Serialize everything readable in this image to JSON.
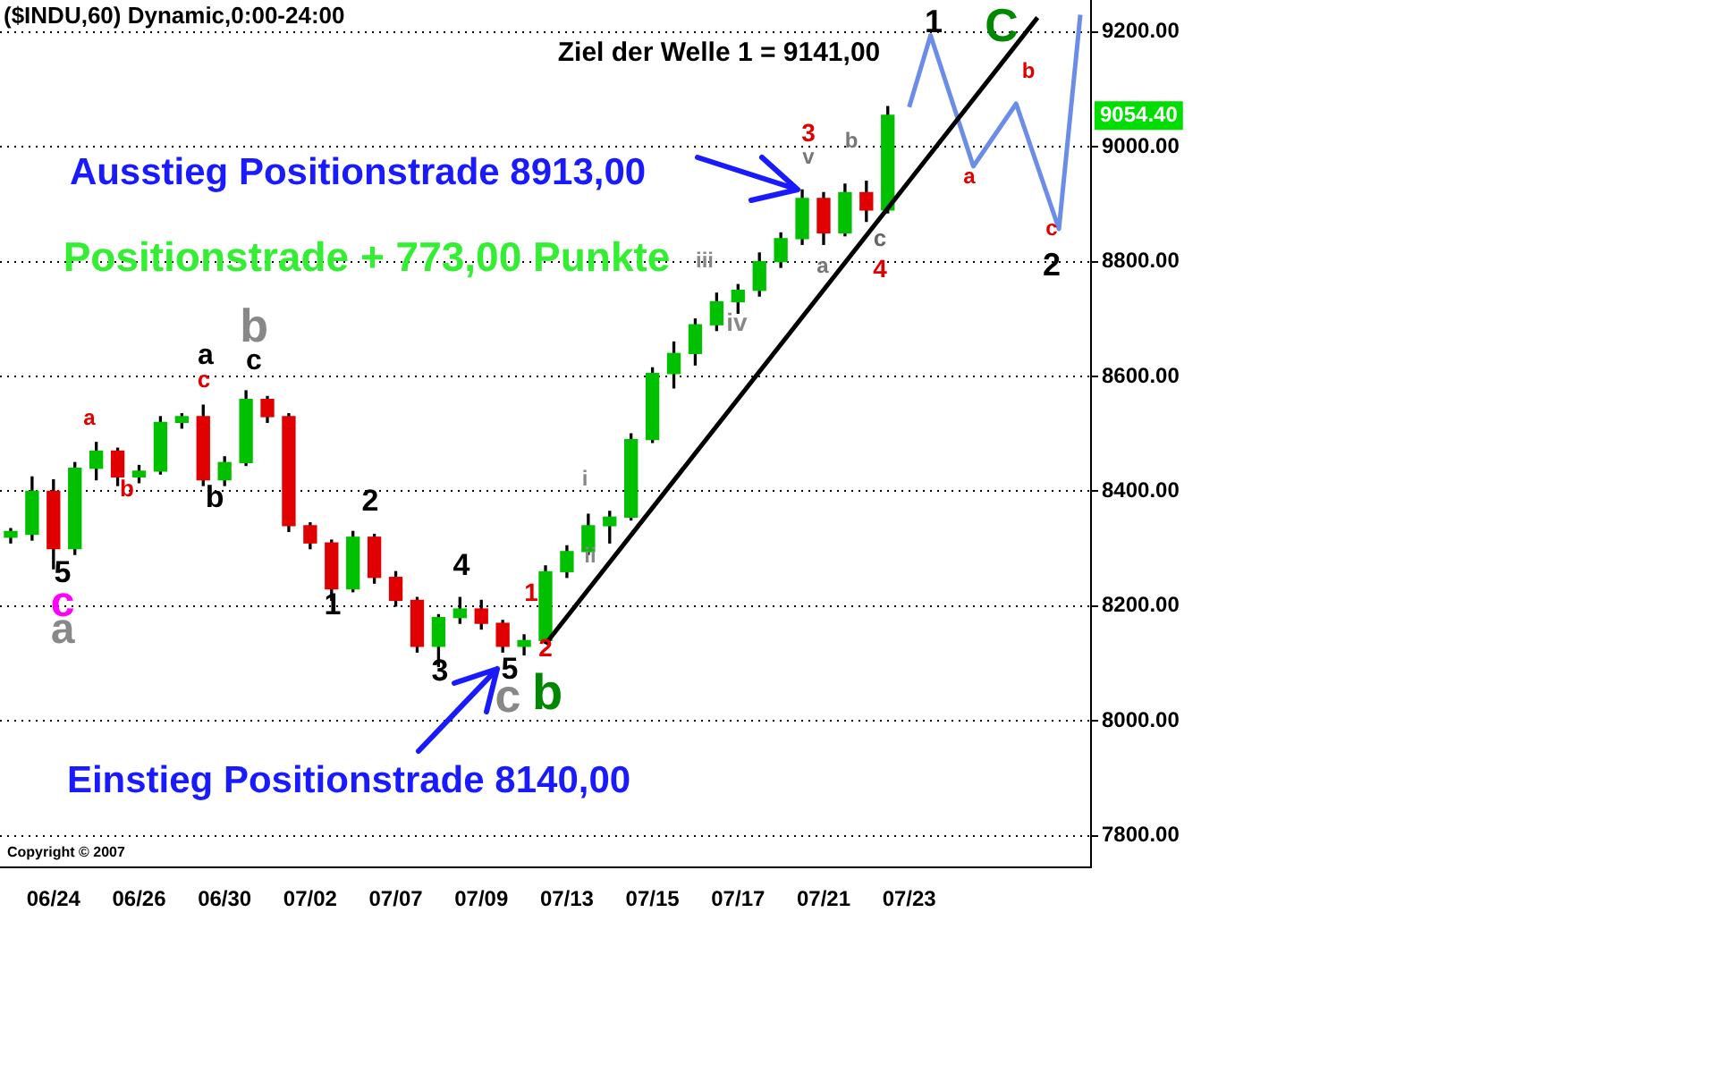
{
  "chart_data": {
    "type": "candlestick",
    "title": "($INDU,60) Dynamic,0:00-24:00",
    "categories": [
      null,
      null,
      "06/24",
      null,
      null,
      null,
      "06/26",
      null,
      null,
      null,
      "06/30",
      null,
      null,
      null,
      "07/02",
      null,
      null,
      null,
      "07/07",
      null,
      null,
      null,
      "07/09",
      null,
      null,
      null,
      "07/13",
      null,
      null,
      null,
      "07/15",
      null,
      null,
      null,
      "07/17",
      null,
      null,
      null,
      "07/21",
      null,
      null,
      null,
      "07/23",
      null,
      null,
      null,
      null,
      null,
      null,
      null,
      null
    ],
    "ohlc": [
      [
        8320,
        8335,
        8310,
        8330
      ],
      [
        8325,
        8425,
        8315,
        8400
      ],
      [
        8400,
        8420,
        8265,
        8300
      ],
      [
        8300,
        8450,
        8290,
        8440
      ],
      [
        8440,
        8485,
        8420,
        8470
      ],
      [
        8470,
        8475,
        8410,
        8425
      ],
      [
        8425,
        8445,
        8415,
        8435
      ],
      [
        8435,
        8530,
        8430,
        8520
      ],
      [
        8520,
        8535,
        8510,
        8530
      ],
      [
        8530,
        8550,
        8410,
        8420
      ],
      [
        8420,
        8460,
        8410,
        8450
      ],
      [
        8450,
        8575,
        8445,
        8560
      ],
      [
        8560,
        8565,
        8520,
        8530
      ],
      [
        8530,
        8535,
        8330,
        8340
      ],
      [
        8340,
        8345,
        8300,
        8310
      ],
      [
        8310,
        8315,
        8210,
        8230
      ],
      [
        8230,
        8330,
        8225,
        8320
      ],
      [
        8320,
        8325,
        8240,
        8250
      ],
      [
        8250,
        8260,
        8200,
        8210
      ],
      [
        8210,
        8215,
        8120,
        8130
      ],
      [
        8130,
        8185,
        8095,
        8180
      ],
      [
        8180,
        8215,
        8170,
        8195
      ],
      [
        8195,
        8210,
        8160,
        8170
      ],
      [
        8170,
        8175,
        8120,
        8130
      ],
      [
        8130,
        8150,
        8115,
        8140
      ],
      [
        8140,
        8270,
        8135,
        8260
      ],
      [
        8260,
        8305,
        8250,
        8295
      ],
      [
        8295,
        8360,
        8290,
        8340
      ],
      [
        8340,
        8365,
        8310,
        8355
      ],
      [
        8355,
        8500,
        8350,
        8490
      ],
      [
        8490,
        8615,
        8485,
        8605
      ],
      [
        8605,
        8660,
        8580,
        8640
      ],
      [
        8640,
        8700,
        8620,
        8690
      ],
      [
        8690,
        8745,
        8680,
        8730
      ],
      [
        8730,
        8760,
        8710,
        8750
      ],
      [
        8750,
        8815,
        8740,
        8800
      ],
      [
        8800,
        8850,
        8790,
        8840
      ],
      [
        8840,
        8925,
        8830,
        8910
      ],
      [
        8910,
        8920,
        8830,
        8850
      ],
      [
        8850,
        8935,
        8845,
        8920
      ],
      [
        8920,
        8940,
        8870,
        8890
      ],
      [
        8890,
        9070,
        8885,
        9055
      ],
      null,
      null,
      null,
      null,
      null,
      null,
      null,
      null,
      null
    ],
    "series": [
      {
        "type": "line",
        "color": "#000000",
        "values": [
          null,
          null,
          null,
          null,
          null,
          null,
          null,
          null,
          null,
          null,
          null,
          null,
          null,
          null,
          null,
          null,
          null,
          null,
          null,
          null,
          null,
          null,
          null,
          null,
          null,
          8134,
          null,
          null,
          null,
          null,
          null,
          null,
          null,
          null,
          null,
          null,
          null,
          null,
          null,
          null,
          null,
          null,
          null,
          null,
          null,
          null,
          null,
          null,
          9225,
          null,
          null
        ]
      },
      {
        "type": "line",
        "color": "#6b8de8",
        "values": [
          null,
          null,
          null,
          null,
          null,
          null,
          null,
          null,
          null,
          null,
          null,
          null,
          null,
          null,
          null,
          null,
          null,
          null,
          null,
          null,
          null,
          null,
          null,
          null,
          null,
          null,
          null,
          null,
          null,
          null,
          null,
          null,
          null,
          null,
          null,
          null,
          null,
          null,
          null,
          null,
          null,
          null,
          9069,
          9194,
          null,
          8966,
          null,
          9075,
          null,
          8857,
          9230
        ]
      }
    ],
    "ylim": [
      7745,
      9255
    ],
    "yticks": [
      {
        "value": 7800,
        "label": "7800.00"
      },
      {
        "value": 8000,
        "label": "8000.00"
      },
      {
        "value": 8200,
        "label": "8200.00"
      },
      {
        "value": 8400,
        "label": "8400.00"
      },
      {
        "value": 8600,
        "label": "8600.00"
      },
      {
        "value": 8800,
        "label": "8800.00"
      },
      {
        "value": 9000,
        "label": "9000.00"
      },
      {
        "value": 9200,
        "label": "9200.00"
      }
    ],
    "grid": "y",
    "legend": false,
    "annotations": [
      "Ziel der Welle 1 = 9141,00",
      "Ausstieg Positionstrade 8913,00",
      "Positionstrade + 773,00 Punkte",
      "Einstieg Positionstrade 8140,00",
      "Copyright © 2007",
      "9054.40",
      "5",
      "c",
      "a",
      "a",
      "b",
      "a",
      "c",
      "b",
      "b",
      "c",
      "1",
      "2",
      "4",
      "3",
      "5",
      "c",
      "b",
      "1",
      "2",
      "i",
      "ii",
      "iii",
      "iv",
      "3",
      "v",
      "a",
      "b",
      "c",
      "4",
      "1",
      "C",
      "a",
      "b",
      "c",
      "2"
    ]
  }
}
